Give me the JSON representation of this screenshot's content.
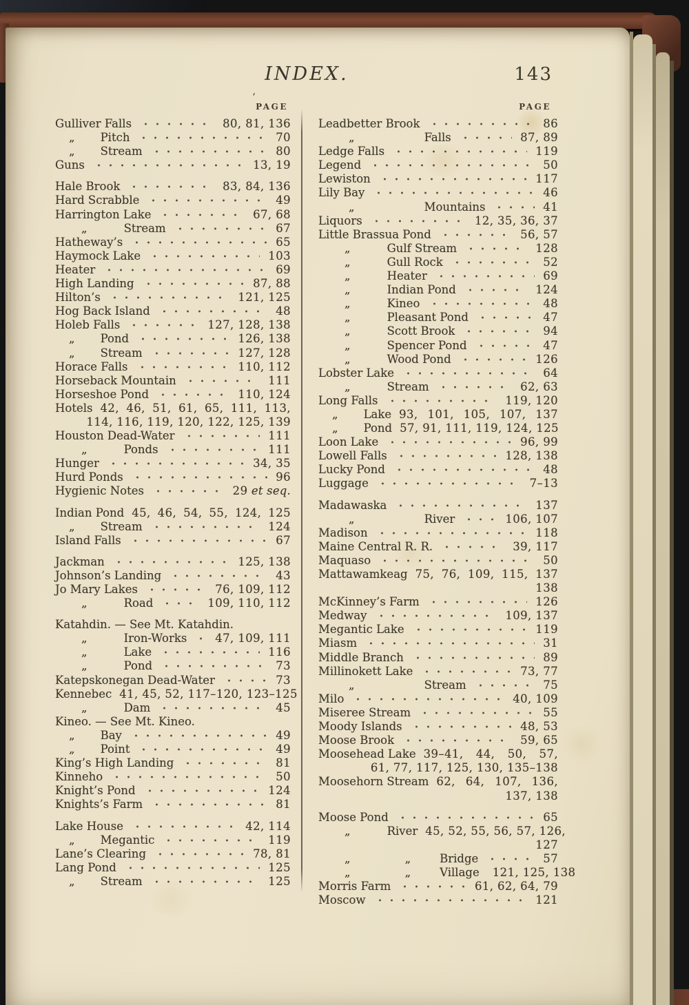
{
  "header": {
    "title": "INDEX.",
    "page_number": "143",
    "column_header": "PAGE",
    "artifact_mark": "‘"
  },
  "index": {
    "left": [
      [
        {
          "type": "entry",
          "label": "Gulliver Falls",
          "pages": "80, 81, 136"
        },
        {
          "type": "entry",
          "dits": [
            "„"
          ],
          "ind": 1,
          "label": "Pitch",
          "pages": "70"
        },
        {
          "type": "entry",
          "dits": [
            "„"
          ],
          "ind": 1,
          "label": "Stream",
          "pages": "80"
        },
        {
          "type": "entry",
          "label": "Guns",
          "pages": "13, 19"
        }
      ],
      [
        {
          "type": "entry",
          "label": "Hale Brook",
          "pages": "83, 84, 136"
        },
        {
          "type": "entry",
          "label": "Hard Scrabble",
          "pages": "49"
        },
        {
          "type": "entry",
          "label": "Harrington Lake",
          "pages": "67, 68"
        },
        {
          "type": "entry",
          "dits": [
            "„"
          ],
          "ind": 2,
          "label": "Stream",
          "pages": "67"
        },
        {
          "type": "entry",
          "label": "Hatheway’s",
          "pages": "65"
        },
        {
          "type": "entry",
          "label": "Haymock Lake",
          "pages": "103"
        },
        {
          "type": "entry",
          "label": "Heater",
          "pages": "69"
        },
        {
          "type": "entry",
          "label": "High Landing",
          "pages": "87, 88"
        },
        {
          "type": "entry",
          "label": "Hilton’s",
          "pages": "121, 125"
        },
        {
          "type": "entry",
          "label": "Hog Back Island",
          "pages": "48"
        },
        {
          "type": "entry",
          "label": "Holeb Falls",
          "pages": "127, 128, 138"
        },
        {
          "type": "entry",
          "dits": [
            "„"
          ],
          "ind": 1,
          "label": "Pond",
          "pages": "126, 138"
        },
        {
          "type": "entry",
          "dits": [
            "„"
          ],
          "ind": 1,
          "label": "Stream",
          "pages": "127, 128"
        },
        {
          "type": "entry",
          "label": "Horace Falls",
          "pages": "110, 112"
        },
        {
          "type": "entry",
          "label": "Horseback Mountain",
          "pages": "111"
        },
        {
          "type": "entry",
          "label": "Horseshoe Pond",
          "pages": "110, 124"
        },
        {
          "type": "run",
          "label": "Hotels",
          "pages": "42, 46, 51, 61, 65, 111, 113,"
        },
        {
          "type": "cont",
          "pages": "114, 116, 119, 120, 122, 125, 139"
        },
        {
          "type": "entry",
          "label": "Houston Dead-Water",
          "pages": "111"
        },
        {
          "type": "entry",
          "dits": [
            "„"
          ],
          "ind": 2,
          "label": "Ponds",
          "pages": "111"
        },
        {
          "type": "entry",
          "label": "Hunger",
          "pages": "34, 35"
        },
        {
          "type": "entry",
          "label": "Hurd Ponds",
          "pages": "96"
        },
        {
          "type": "entry",
          "label": "Hygienic Notes",
          "pages": "29",
          "tail": "et seq."
        }
      ],
      [
        {
          "type": "run",
          "label": "Indian Pond",
          "pages": "45, 46, 54, 55, 124, 125"
        },
        {
          "type": "entry",
          "dits": [
            "„"
          ],
          "ind": 1,
          "label": "Stream",
          "pages": "124"
        },
        {
          "type": "entry",
          "label": "Island Falls",
          "pages": "67"
        }
      ],
      [
        {
          "type": "entry",
          "label": "Jackman",
          "pages": "125, 138"
        },
        {
          "type": "entry",
          "label": "Johnson’s Landing",
          "pages": "43"
        },
        {
          "type": "entry",
          "label": "Jo Mary Lakes",
          "pages": "76, 109, 112"
        },
        {
          "type": "entry",
          "dits": [
            "„"
          ],
          "ind": 2,
          "label": "Road",
          "pages": "109, 110, 112"
        }
      ],
      [
        {
          "type": "see",
          "label": "Katahdin. — See Mt. Katahdin."
        },
        {
          "type": "entry",
          "dits": [
            "„"
          ],
          "ind": 2,
          "label": "Iron-Works",
          "pages": "47, 109, 111"
        },
        {
          "type": "entry",
          "dits": [
            "„"
          ],
          "ind": 2,
          "label": "Lake",
          "pages": "116"
        },
        {
          "type": "entry",
          "dits": [
            "„"
          ],
          "ind": 2,
          "label": "Pond",
          "pages": "73"
        },
        {
          "type": "entry",
          "label": "Katepskonegan Dead-Water",
          "pages": "73"
        },
        {
          "type": "run",
          "label": "Kennebec",
          "pages": "41, 45, 52, 117–120, 123–125"
        },
        {
          "type": "entry",
          "dits": [
            "„"
          ],
          "ind": 2,
          "label": "Dam",
          "pages": "45"
        },
        {
          "type": "see",
          "label": "Kineo. — See Mt. Kineo."
        },
        {
          "type": "entry",
          "dits": [
            "„"
          ],
          "ind": 1,
          "label": "Bay",
          "pages": "49"
        },
        {
          "type": "entry",
          "dits": [
            "„"
          ],
          "ind": 1,
          "label": "Point",
          "pages": "49"
        },
        {
          "type": "entry",
          "label": "King’s High Landing",
          "pages": "81"
        },
        {
          "type": "entry",
          "label": "Kinneho",
          "pages": "50"
        },
        {
          "type": "entry",
          "label": "Knight’s Pond",
          "pages": "124"
        },
        {
          "type": "entry",
          "label": "Knights’s Farm",
          "pages": "81"
        }
      ],
      [
        {
          "type": "entry",
          "label": "Lake House",
          "pages": "42, 114"
        },
        {
          "type": "entry",
          "dits": [
            "„"
          ],
          "ind": 1,
          "label": "Megantic",
          "pages": "119"
        },
        {
          "type": "entry",
          "label": "Lane’s Clearing",
          "pages": "78, 81"
        },
        {
          "type": "entry",
          "label": "Lang Pond",
          "pages": "125"
        },
        {
          "type": "entry",
          "dits": [
            "„"
          ],
          "ind": 1,
          "label": "Stream",
          "pages": "125"
        }
      ]
    ],
    "right": [
      [
        {
          "type": "entry",
          "label": "Leadbetter Brook",
          "pages": "86"
        },
        {
          "type": "entry",
          "dits": [
            "„"
          ],
          "ind": 3,
          "label": "Falls",
          "pages": "87, 89"
        },
        {
          "type": "entry",
          "label": "Ledge Falls",
          "pages": "119"
        },
        {
          "type": "entry",
          "label": "Legend",
          "pages": "50"
        },
        {
          "type": "entry",
          "label": "Lewiston",
          "pages": "117"
        },
        {
          "type": "entry",
          "label": "Lily Bay",
          "pages": "46"
        },
        {
          "type": "entry",
          "dits": [
            "„"
          ],
          "ind": 3,
          "label": "Mountains",
          "pages": "41"
        },
        {
          "type": "entry",
          "label": "Liquors",
          "pages": "12, 35, 36, 37"
        },
        {
          "type": "entry",
          "label": "Little Brassua Pond",
          "pages": "56, 57"
        },
        {
          "type": "entry",
          "dits": [
            "„"
          ],
          "ind": 2,
          "label": "Gulf Stream",
          "pages": "128"
        },
        {
          "type": "entry",
          "dits": [
            "„"
          ],
          "ind": 2,
          "label": "Gull Rock",
          "pages": "52"
        },
        {
          "type": "entry",
          "dits": [
            "„"
          ],
          "ind": 2,
          "label": "Heater",
          "pages": "69"
        },
        {
          "type": "entry",
          "dits": [
            "„"
          ],
          "ind": 2,
          "label": "Indian Pond",
          "pages": "124"
        },
        {
          "type": "entry",
          "dits": [
            "„"
          ],
          "ind": 2,
          "label": "Kineo",
          "pages": "48"
        },
        {
          "type": "entry",
          "dits": [
            "„"
          ],
          "ind": 2,
          "label": "Pleasant Pond",
          "pages": "47"
        },
        {
          "type": "entry",
          "dits": [
            "„"
          ],
          "ind": 2,
          "label": "Scott Brook",
          "pages": "94"
        },
        {
          "type": "entry",
          "dits": [
            "„"
          ],
          "ind": 2,
          "label": "Spencer Pond",
          "pages": "47"
        },
        {
          "type": "entry",
          "dits": [
            "„"
          ],
          "ind": 2,
          "label": "Wood Pond",
          "pages": "126"
        },
        {
          "type": "entry",
          "label": "Lobster Lake",
          "pages": "64"
        },
        {
          "type": "entry",
          "dits": [
            "„"
          ],
          "ind": 2,
          "label": "Stream",
          "pages": "62, 63"
        },
        {
          "type": "entry",
          "label": "Long Falls",
          "pages": "119, 120"
        },
        {
          "type": "run",
          "dits": [
            "„"
          ],
          "ind": 1,
          "label": "Lake",
          "pages": "93, 101, 105, 107, 137"
        },
        {
          "type": "run",
          "dits": [
            "„"
          ],
          "ind": 1,
          "label": "Pond",
          "pages": "57, 91, 111, 119, 124, 125"
        },
        {
          "type": "entry",
          "label": "Loon Lake",
          "pages": "96, 99"
        },
        {
          "type": "entry",
          "label": "Lowell Falls",
          "pages": "128, 138"
        },
        {
          "type": "entry",
          "label": "Lucky Pond",
          "pages": "48"
        },
        {
          "type": "entry",
          "label": "Luggage",
          "pages": "7–13"
        }
      ],
      [
        {
          "type": "entry",
          "label": "Madawaska",
          "pages": "137"
        },
        {
          "type": "entry",
          "dits": [
            "„"
          ],
          "ind": 3,
          "label": "River",
          "pages": "106, 107"
        },
        {
          "type": "entry",
          "label": "Madison",
          "pages": "118"
        },
        {
          "type": "entry",
          "label": "Maine Central R. R.",
          "pages": "39, 117"
        },
        {
          "type": "entry",
          "label": "Maquaso",
          "pages": "50"
        },
        {
          "type": "run",
          "label": "Mattawamkeag",
          "pages": "75, 76, 109, 115, 137"
        },
        {
          "type": "cont",
          "pages": "138"
        },
        {
          "type": "entry",
          "label": "McKinney’s Farm",
          "pages": "126"
        },
        {
          "type": "entry",
          "label": "Medway",
          "pages": "109, 137"
        },
        {
          "type": "entry",
          "label": "Megantic Lake",
          "pages": "119"
        },
        {
          "type": "entry",
          "label": "Miasm",
          "pages": "31"
        },
        {
          "type": "entry",
          "label": "Middle Branch",
          "pages": "89"
        },
        {
          "type": "entry",
          "label": "Millinokett Lake",
          "pages": "73, 77"
        },
        {
          "type": "entry",
          "dits": [
            "„"
          ],
          "ind": 3,
          "label": "Stream",
          "pages": "75"
        },
        {
          "type": "entry",
          "label": "Milo",
          "pages": "40, 109"
        },
        {
          "type": "entry",
          "label": "Miseree Stream",
          "pages": "55"
        },
        {
          "type": "entry",
          "label": "Moody Islands",
          "pages": "48, 53"
        },
        {
          "type": "entry",
          "label": "Moose Brook",
          "pages": "59, 65"
        },
        {
          "type": "run",
          "label": "Moosehead Lake",
          "pages": "39–41, 44, 50, 57,"
        },
        {
          "type": "cont",
          "pages": "61, 77, 117, 125, 130, 135–138"
        },
        {
          "type": "run",
          "label": "Moosehorn Stream",
          "pages": "62, 64, 107, 136,"
        },
        {
          "type": "cont",
          "pages": "137, 138"
        }
      ],
      [
        {
          "type": "entry",
          "label": "Moose Pond",
          "pages": "65"
        },
        {
          "type": "run",
          "dits": [
            "„"
          ],
          "ind": 2,
          "label": "River",
          "pages": "45, 52, 55, 56, 57, 126,"
        },
        {
          "type": "cont",
          "pages": "127"
        },
        {
          "type": "entry",
          "dits": [
            "„",
            "„"
          ],
          "ind": 4,
          "label": "Bridge",
          "pages": "57"
        },
        {
          "type": "entry",
          "dits": [
            "„",
            "„"
          ],
          "ind": 4,
          "label": "Village",
          "pages": "121, 125, 138"
        },
        {
          "type": "entry",
          "label": "Morris Farm",
          "pages": "61, 62, 64, 79"
        },
        {
          "type": "entry",
          "label": "Moscow",
          "pages": "121"
        }
      ]
    ]
  }
}
